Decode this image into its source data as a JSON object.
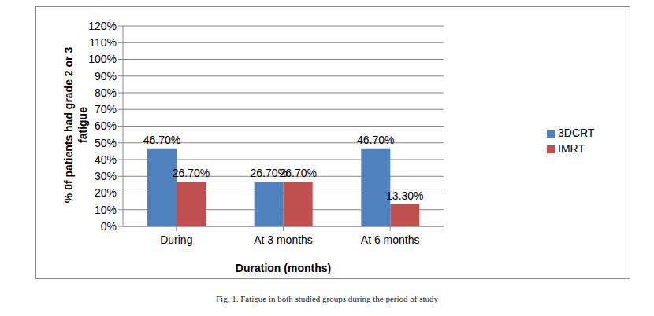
{
  "chart_data": {
    "type": "bar",
    "caption": "Fig. 1. Fatigue in both studied groups during the period of study",
    "x_label": "Duration (months)",
    "y_label": "% 0f patients had grade 2 or 3 fatigue",
    "categories": [
      "During",
      "At 3 months",
      "At 6 months"
    ],
    "series": [
      {
        "name": "3DCRT",
        "color": "#4F81BD",
        "values": [
          46.7,
          26.7,
          46.7
        ],
        "value_labels": [
          "46.70%",
          "26.70%",
          "46.70%"
        ]
      },
      {
        "name": "IMRT",
        "color": "#C0504D",
        "values": [
          26.7,
          26.7,
          13.3
        ],
        "value_labels": [
          "26.70%",
          "26.70%",
          "13.30%"
        ]
      }
    ],
    "ylim": [
      0,
      120
    ],
    "yticks": [
      {
        "value": 0,
        "label": "0%"
      },
      {
        "value": 10,
        "label": "10%"
      },
      {
        "value": 20,
        "label": "20%"
      },
      {
        "value": 30,
        "label": "30%"
      },
      {
        "value": 40,
        "label": "40%"
      },
      {
        "value": 50,
        "label": "50%"
      },
      {
        "value": 60,
        "label": "60%"
      },
      {
        "value": 70,
        "label": "70%"
      },
      {
        "value": 80,
        "label": "80%"
      },
      {
        "value": 90,
        "label": "90%"
      },
      {
        "value": 100,
        "label": "100%"
      },
      {
        "value": 110,
        "label": "110%"
      },
      {
        "value": 120,
        "label": "120%"
      }
    ],
    "grid": true,
    "legend": "right",
    "data_labels": true
  }
}
